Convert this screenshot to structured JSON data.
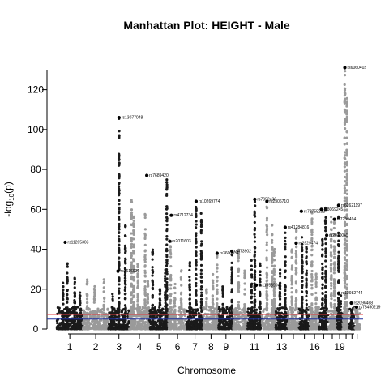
{
  "chart_data": {
    "type": "scatter",
    "title": "Manhattan Plot: HEIGHT - Male",
    "xlabel": "Chromosome",
    "ylabel_main": "-log",
    "ylabel_sub": "10",
    "ylabel_arg": "(p)",
    "ylim": [
      0,
      130
    ],
    "y_ticks": [
      "0",
      "20",
      "40",
      "60",
      "80",
      "100",
      "120"
    ],
    "y_tick_values": [
      0,
      20,
      40,
      60,
      80,
      100,
      120
    ],
    "x_tick_labels": [
      "1",
      "2",
      "3",
      "4",
      "5",
      "6",
      "7",
      "8",
      "9",
      "11",
      "13",
      "16",
      "19"
    ],
    "x_tick_chromosomes": [
      1,
      2,
      3,
      4,
      5,
      6,
      7,
      8,
      9,
      11,
      13,
      16,
      19
    ],
    "unlabeled_ticks": [
      10,
      12,
      14,
      15,
      17,
      18,
      20,
      21,
      22
    ],
    "colors": {
      "odd": "#1a1a1a",
      "even": "#9a9a9a",
      "genome_wide": "#e0393e",
      "suggestive": "#1f2f9e"
    },
    "thresholds": [
      {
        "name": "genome-wide",
        "value": 7.3
      },
      {
        "name": "suggestive",
        "value": 5
      }
    ],
    "chromosomes": [
      {
        "chr": 1,
        "start": 0,
        "end": 248,
        "peaks": [
          [
            60,
            24
          ],
          [
            100,
            33
          ],
          [
            170,
            27
          ],
          [
            220,
            22
          ]
        ]
      },
      {
        "chr": 2,
        "start": 248,
        "end": 490,
        "peaks": [
          [
            40,
            26
          ],
          [
            110,
            22
          ],
          [
            200,
            25
          ]
        ]
      },
      {
        "chr": 3,
        "start": 490,
        "end": 688,
        "peaks": [
          [
            40,
            18
          ],
          [
            100,
            106
          ],
          [
            160,
            52
          ]
        ]
      },
      {
        "chr": 4,
        "start": 688,
        "end": 878,
        "peaks": [
          [
            20,
            67
          ],
          [
            40,
            60
          ],
          [
            80,
            33
          ],
          [
            150,
            58
          ],
          [
            175,
            25
          ]
        ]
      },
      {
        "chr": 5,
        "start": 878,
        "end": 1059,
        "peaks": [
          [
            30,
            40
          ],
          [
            100,
            20
          ],
          [
            150,
            30
          ],
          [
            165,
            77
          ]
        ]
      },
      {
        "chr": 6,
        "start": 1059,
        "end": 1230,
        "peaks": [
          [
            20,
            44
          ],
          [
            60,
            25
          ],
          [
            120,
            30
          ]
        ]
      },
      {
        "chr": 7,
        "start": 1230,
        "end": 1389,
        "peaks": [
          [
            30,
            37
          ],
          [
            90,
            64
          ],
          [
            140,
            58
          ]
        ]
      },
      {
        "chr": 8,
        "start": 1389,
        "end": 1534,
        "peaks": [
          [
            30,
            22
          ],
          [
            90,
            28
          ],
          [
            130,
            38
          ]
        ]
      },
      {
        "chr": 9,
        "start": 1534,
        "end": 1672,
        "peaks": [
          [
            40,
            22
          ],
          [
            100,
            10
          ],
          [
            125,
            38
          ]
        ]
      },
      {
        "chr": 10,
        "start": 1672,
        "end": 1806,
        "peaks": [
          [
            50,
            40
          ],
          [
            110,
            30
          ]
        ]
      },
      {
        "chr": 11,
        "start": 1806,
        "end": 1941,
        "peaks": [
          [
            40,
            35
          ],
          [
            70,
            65
          ],
          [
            120,
            34
          ]
        ]
      },
      {
        "chr": 12,
        "start": 1941,
        "end": 2074,
        "peaks": [
          [
            50,
            66
          ],
          [
            100,
            52
          ],
          [
            120,
            41
          ]
        ]
      },
      {
        "chr": 13,
        "start": 2074,
        "end": 2188,
        "peaks": [
          [
            40,
            30
          ],
          [
            90,
            50
          ]
        ]
      },
      {
        "chr": 14,
        "start": 2188,
        "end": 2295,
        "peaks": [
          [
            40,
            40
          ],
          [
            80,
            51
          ]
        ]
      },
      {
        "chr": 15,
        "start": 2295,
        "end": 2397,
        "peaks": [
          [
            30,
            48
          ],
          [
            70,
            42
          ]
        ]
      },
      {
        "chr": 16,
        "start": 2397,
        "end": 2487,
        "peaks": [
          [
            20,
            59
          ],
          [
            60,
            30
          ]
        ]
      },
      {
        "chr": 17,
        "start": 2487,
        "end": 2570,
        "peaks": [
          [
            30,
            46
          ],
          [
            60,
            62
          ]
        ]
      },
      {
        "chr": 18,
        "start": 2570,
        "end": 2650,
        "peaks": [
          [
            30,
            60
          ],
          [
            60,
            55
          ]
        ]
      },
      {
        "chr": 19,
        "start": 2650,
        "end": 2709,
        "peaks": [
          [
            20,
            57
          ],
          [
            40,
            18
          ]
        ]
      },
      {
        "chr": 20,
        "start": 2709,
        "end": 2773,
        "peaks": [
          [
            20,
            131
          ],
          [
            40,
            120
          ]
        ]
      },
      {
        "chr": 21,
        "start": 2773,
        "end": 2820,
        "peaks": [
          [
            20,
            10
          ]
        ]
      },
      {
        "chr": 22,
        "start": 2820,
        "end": 2871,
        "peaks": [
          [
            25,
            12
          ]
        ]
      }
    ],
    "lead_snps": [
      {
        "label": "rs11205303",
        "x": 80,
        "y": 43.5
      },
      {
        "label": "rs7616939",
        "x": 580,
        "y": 29
      },
      {
        "label": "rs13077048",
        "x": 590,
        "y": 106
      },
      {
        "label": "rs7689420",
        "x": 853,
        "y": 77
      },
      {
        "label": "rs2011603",
        "x": 1070,
        "y": 44
      },
      {
        "label": "rs4712734",
        "x": 1085,
        "y": 57
      },
      {
        "label": "rs10269774",
        "x": 1320,
        "y": 64
      },
      {
        "label": "rs3600934",
        "x": 1519,
        "y": 38
      },
      {
        "label": "rs473902",
        "x": 1659,
        "y": 39
      },
      {
        "label": "rs11053904",
        "x": 1890,
        "y": 22
      },
      {
        "label": "rs7952436",
        "x": 1876,
        "y": 65
      },
      {
        "label": "rs2306710",
        "x": 1991,
        "y": 64
      },
      {
        "label": "rs41284816",
        "x": 2164,
        "y": 51
      },
      {
        "label": "rs2929474",
        "x": 2268,
        "y": 43
      },
      {
        "label": "rs72755233",
        "x": 2317,
        "y": 59
      },
      {
        "label": "rs8069245",
        "x": 2507,
        "y": 60
      },
      {
        "label": "rs2070045",
        "x": 2557,
        "y": 47
      },
      {
        "label": "rs7239494",
        "x": 2630,
        "y": 55
      },
      {
        "label": "rs12982744",
        "x": 2672,
        "y": 18
      },
      {
        "label": "rs62621197",
        "x": 2670,
        "y": 62
      },
      {
        "label": "rs6060402",
        "x": 2729,
        "y": 131
      },
      {
        "label": "rs2096468",
        "x": 2790,
        "y": 13
      },
      {
        "label": "rs75450219",
        "x": 2840,
        "y": 11
      }
    ]
  }
}
